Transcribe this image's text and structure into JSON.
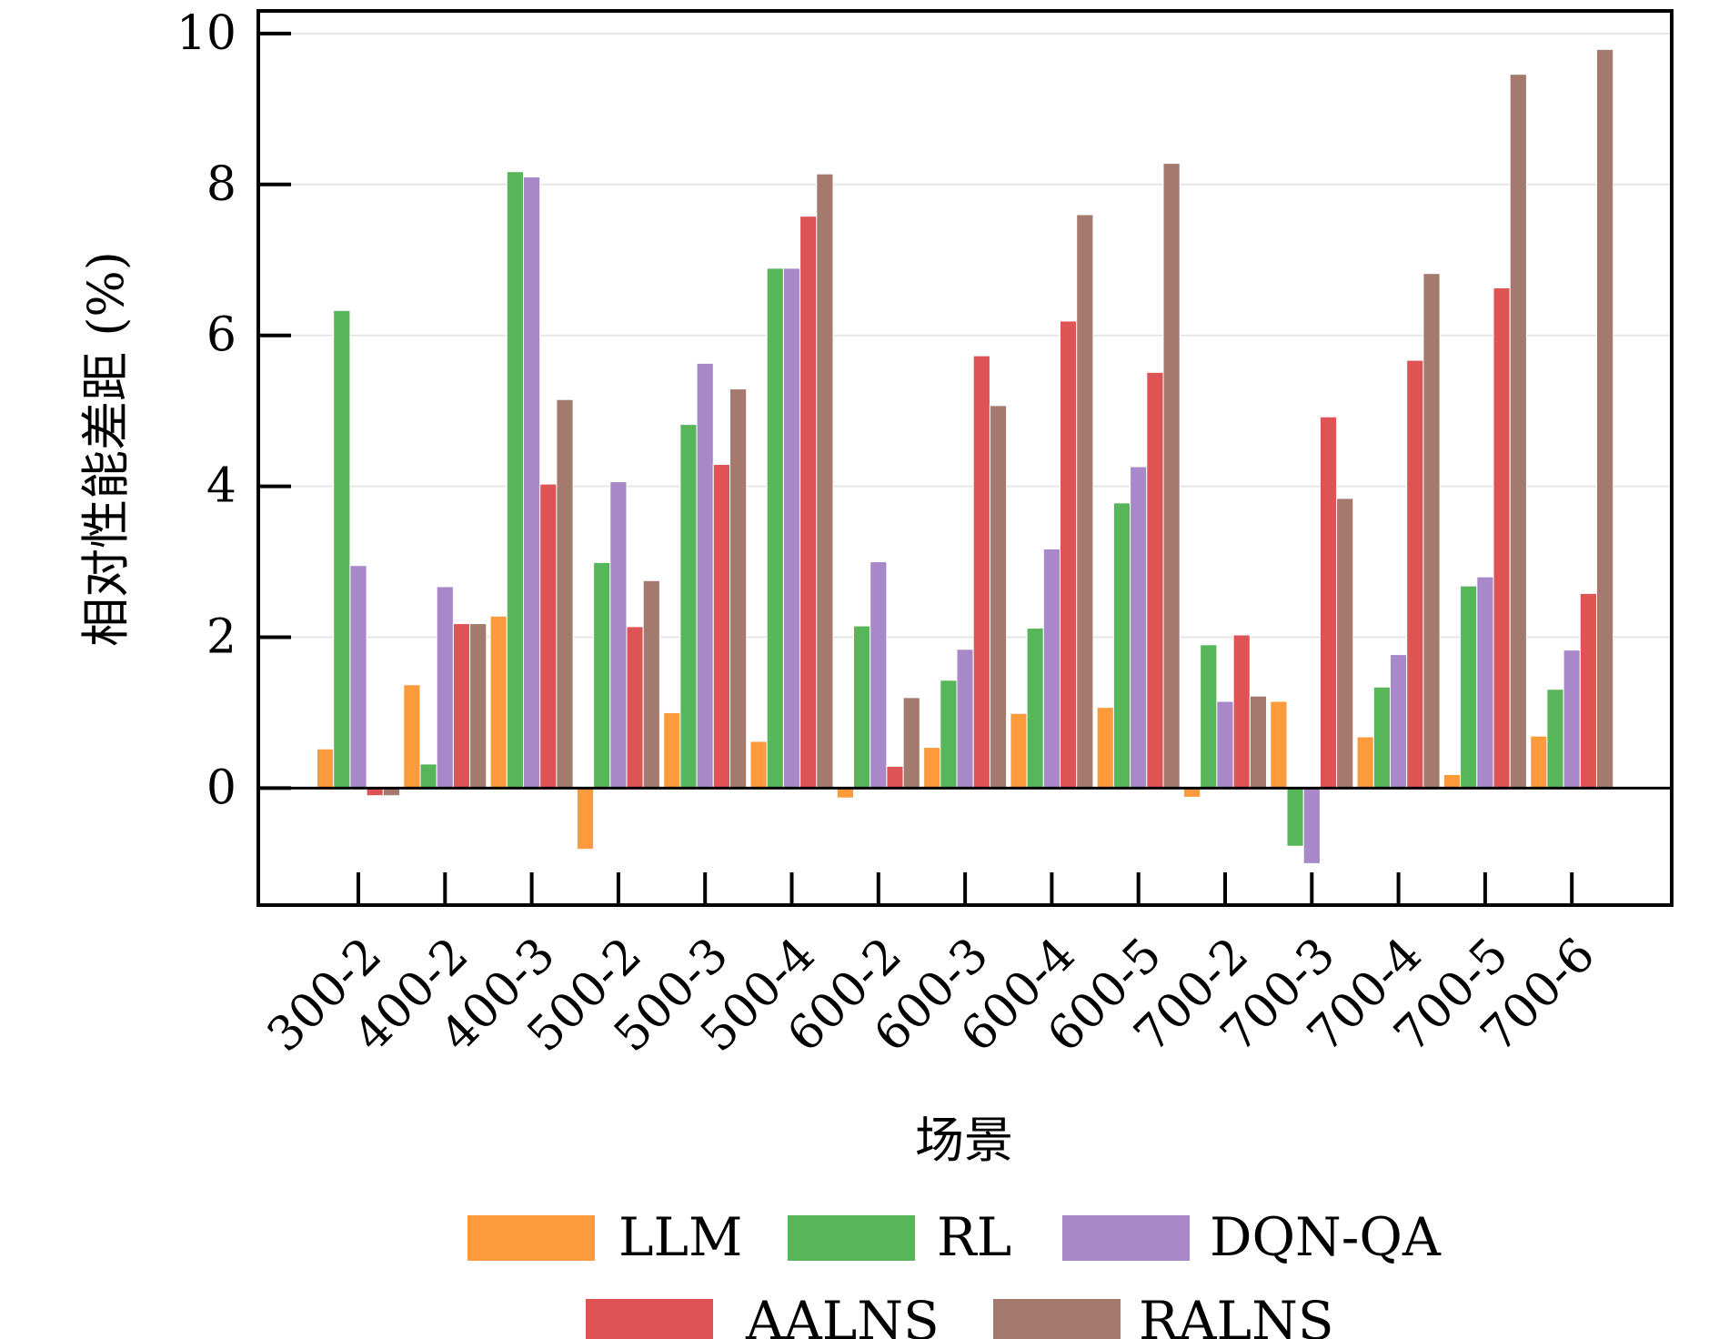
{
  "chart_data": {
    "type": "bar",
    "title": "",
    "xlabel": "场景",
    "ylabel": "相对性能差距 (%)",
    "ylim": [
      -1.55,
      10.3
    ],
    "yticks": [
      0,
      2,
      4,
      6,
      8,
      10
    ],
    "grid": "horizontal-light",
    "legend_position": "bottom",
    "categories": [
      "300-2",
      "400-2",
      "400-3",
      "500-2",
      "500-3",
      "500-4",
      "600-2",
      "600-3",
      "600-4",
      "600-5",
      "700-2",
      "700-3",
      "700-4",
      "700-5",
      "700-6"
    ],
    "series": [
      {
        "name": "LLM",
        "color": "#fd9a3c",
        "values": [
          0.52,
          1.37,
          2.28,
          -0.81,
          1.0,
          0.62,
          -0.13,
          0.54,
          0.99,
          1.07,
          -0.12,
          1.15,
          0.68,
          0.18,
          0.69
        ]
      },
      {
        "name": "RL",
        "color": "#58b65a",
        "values": [
          6.33,
          0.32,
          8.17,
          2.99,
          4.82,
          6.89,
          2.15,
          1.43,
          2.12,
          3.78,
          1.9,
          -0.77,
          1.34,
          2.68,
          1.31
        ]
      },
      {
        "name": "DQN-QA",
        "color": "#a888c9",
        "values": [
          2.95,
          2.67,
          8.1,
          4.06,
          5.63,
          6.89,
          3.0,
          1.84,
          3.17,
          4.26,
          1.15,
          -1.0,
          1.77,
          2.8,
          1.83
        ]
      },
      {
        "name": "AALNS",
        "color": "#de5353",
        "values": [
          -0.1,
          2.18,
          4.03,
          2.14,
          4.29,
          7.58,
          0.29,
          5.73,
          6.19,
          5.51,
          2.03,
          4.92,
          5.67,
          6.63,
          2.58
        ]
      },
      {
        "name": "RALNS",
        "color": "#a47a6e",
        "values": [
          -0.1,
          2.18,
          5.15,
          2.75,
          5.29,
          8.14,
          1.2,
          5.07,
          7.6,
          8.28,
          1.22,
          3.84,
          6.82,
          9.46,
          9.79
        ]
      }
    ]
  }
}
